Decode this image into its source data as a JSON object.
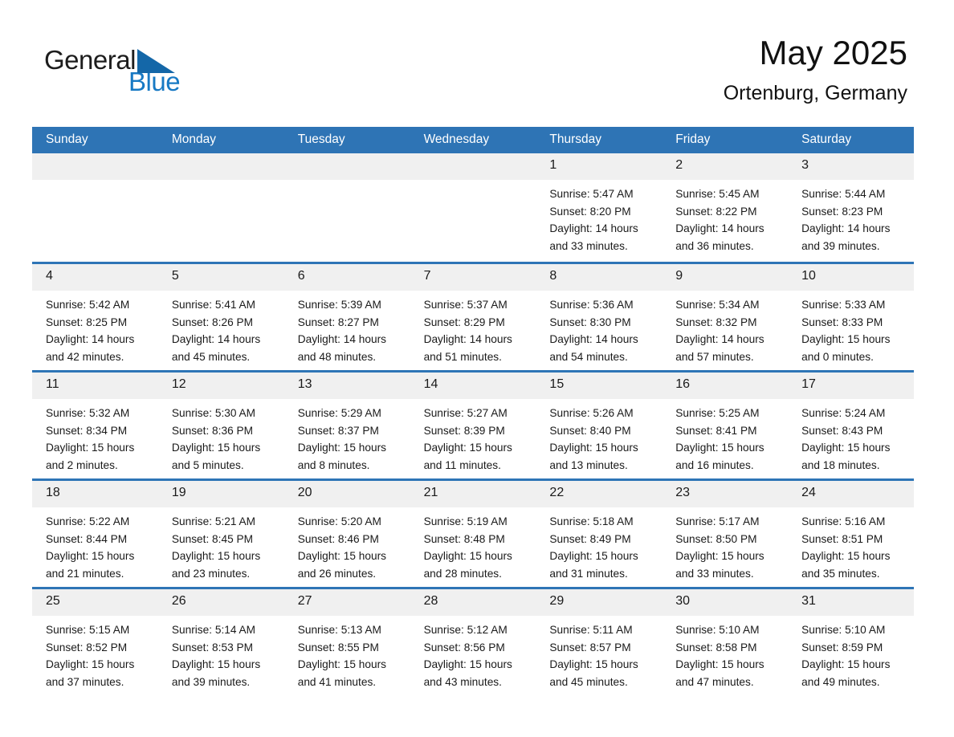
{
  "logo": {
    "general": "General",
    "blue": "Blue",
    "triangle_icon": "flag-triangle"
  },
  "header": {
    "title": "May 2025",
    "subtitle": "Ortenburg, Germany"
  },
  "weekdays": [
    "Sunday",
    "Monday",
    "Tuesday",
    "Wednesday",
    "Thursday",
    "Friday",
    "Saturday"
  ],
  "colors": {
    "header_blue": "#2E74B5",
    "divider_blue": "#2E75B6",
    "day_band_gray": "#F0F0F0",
    "logo_text_blue": "#1779C4",
    "logo_triangle_blue": "#1467A8"
  },
  "weeks": [
    [
      null,
      null,
      null,
      null,
      {
        "day": "1",
        "sunrise": "Sunrise: 5:47 AM",
        "sunset": "Sunset: 8:20 PM",
        "daylight1": "Daylight: 14 hours",
        "daylight2": "and 33 minutes."
      },
      {
        "day": "2",
        "sunrise": "Sunrise: 5:45 AM",
        "sunset": "Sunset: 8:22 PM",
        "daylight1": "Daylight: 14 hours",
        "daylight2": "and 36 minutes."
      },
      {
        "day": "3",
        "sunrise": "Sunrise: 5:44 AM",
        "sunset": "Sunset: 8:23 PM",
        "daylight1": "Daylight: 14 hours",
        "daylight2": "and 39 minutes."
      }
    ],
    [
      {
        "day": "4",
        "sunrise": "Sunrise: 5:42 AM",
        "sunset": "Sunset: 8:25 PM",
        "daylight1": "Daylight: 14 hours",
        "daylight2": "and 42 minutes."
      },
      {
        "day": "5",
        "sunrise": "Sunrise: 5:41 AM",
        "sunset": "Sunset: 8:26 PM",
        "daylight1": "Daylight: 14 hours",
        "daylight2": "and 45 minutes."
      },
      {
        "day": "6",
        "sunrise": "Sunrise: 5:39 AM",
        "sunset": "Sunset: 8:27 PM",
        "daylight1": "Daylight: 14 hours",
        "daylight2": "and 48 minutes."
      },
      {
        "day": "7",
        "sunrise": "Sunrise: 5:37 AM",
        "sunset": "Sunset: 8:29 PM",
        "daylight1": "Daylight: 14 hours",
        "daylight2": "and 51 minutes."
      },
      {
        "day": "8",
        "sunrise": "Sunrise: 5:36 AM",
        "sunset": "Sunset: 8:30 PM",
        "daylight1": "Daylight: 14 hours",
        "daylight2": "and 54 minutes."
      },
      {
        "day": "9",
        "sunrise": "Sunrise: 5:34 AM",
        "sunset": "Sunset: 8:32 PM",
        "daylight1": "Daylight: 14 hours",
        "daylight2": "and 57 minutes."
      },
      {
        "day": "10",
        "sunrise": "Sunrise: 5:33 AM",
        "sunset": "Sunset: 8:33 PM",
        "daylight1": "Daylight: 15 hours",
        "daylight2": "and 0 minutes."
      }
    ],
    [
      {
        "day": "11",
        "sunrise": "Sunrise: 5:32 AM",
        "sunset": "Sunset: 8:34 PM",
        "daylight1": "Daylight: 15 hours",
        "daylight2": "and 2 minutes."
      },
      {
        "day": "12",
        "sunrise": "Sunrise: 5:30 AM",
        "sunset": "Sunset: 8:36 PM",
        "daylight1": "Daylight: 15 hours",
        "daylight2": "and 5 minutes."
      },
      {
        "day": "13",
        "sunrise": "Sunrise: 5:29 AM",
        "sunset": "Sunset: 8:37 PM",
        "daylight1": "Daylight: 15 hours",
        "daylight2": "and 8 minutes."
      },
      {
        "day": "14",
        "sunrise": "Sunrise: 5:27 AM",
        "sunset": "Sunset: 8:39 PM",
        "daylight1": "Daylight: 15 hours",
        "daylight2": "and 11 minutes."
      },
      {
        "day": "15",
        "sunrise": "Sunrise: 5:26 AM",
        "sunset": "Sunset: 8:40 PM",
        "daylight1": "Daylight: 15 hours",
        "daylight2": "and 13 minutes."
      },
      {
        "day": "16",
        "sunrise": "Sunrise: 5:25 AM",
        "sunset": "Sunset: 8:41 PM",
        "daylight1": "Daylight: 15 hours",
        "daylight2": "and 16 minutes."
      },
      {
        "day": "17",
        "sunrise": "Sunrise: 5:24 AM",
        "sunset": "Sunset: 8:43 PM",
        "daylight1": "Daylight: 15 hours",
        "daylight2": "and 18 minutes."
      }
    ],
    [
      {
        "day": "18",
        "sunrise": "Sunrise: 5:22 AM",
        "sunset": "Sunset: 8:44 PM",
        "daylight1": "Daylight: 15 hours",
        "daylight2": "and 21 minutes."
      },
      {
        "day": "19",
        "sunrise": "Sunrise: 5:21 AM",
        "sunset": "Sunset: 8:45 PM",
        "daylight1": "Daylight: 15 hours",
        "daylight2": "and 23 minutes."
      },
      {
        "day": "20",
        "sunrise": "Sunrise: 5:20 AM",
        "sunset": "Sunset: 8:46 PM",
        "daylight1": "Daylight: 15 hours",
        "daylight2": "and 26 minutes."
      },
      {
        "day": "21",
        "sunrise": "Sunrise: 5:19 AM",
        "sunset": "Sunset: 8:48 PM",
        "daylight1": "Daylight: 15 hours",
        "daylight2": "and 28 minutes."
      },
      {
        "day": "22",
        "sunrise": "Sunrise: 5:18 AM",
        "sunset": "Sunset: 8:49 PM",
        "daylight1": "Daylight: 15 hours",
        "daylight2": "and 31 minutes."
      },
      {
        "day": "23",
        "sunrise": "Sunrise: 5:17 AM",
        "sunset": "Sunset: 8:50 PM",
        "daylight1": "Daylight: 15 hours",
        "daylight2": "and 33 minutes."
      },
      {
        "day": "24",
        "sunrise": "Sunrise: 5:16 AM",
        "sunset": "Sunset: 8:51 PM",
        "daylight1": "Daylight: 15 hours",
        "daylight2": "and 35 minutes."
      }
    ],
    [
      {
        "day": "25",
        "sunrise": "Sunrise: 5:15 AM",
        "sunset": "Sunset: 8:52 PM",
        "daylight1": "Daylight: 15 hours",
        "daylight2": "and 37 minutes."
      },
      {
        "day": "26",
        "sunrise": "Sunrise: 5:14 AM",
        "sunset": "Sunset: 8:53 PM",
        "daylight1": "Daylight: 15 hours",
        "daylight2": "and 39 minutes."
      },
      {
        "day": "27",
        "sunrise": "Sunrise: 5:13 AM",
        "sunset": "Sunset: 8:55 PM",
        "daylight1": "Daylight: 15 hours",
        "daylight2": "and 41 minutes."
      },
      {
        "day": "28",
        "sunrise": "Sunrise: 5:12 AM",
        "sunset": "Sunset: 8:56 PM",
        "daylight1": "Daylight: 15 hours",
        "daylight2": "and 43 minutes."
      },
      {
        "day": "29",
        "sunrise": "Sunrise: 5:11 AM",
        "sunset": "Sunset: 8:57 PM",
        "daylight1": "Daylight: 15 hours",
        "daylight2": "and 45 minutes."
      },
      {
        "day": "30",
        "sunrise": "Sunrise: 5:10 AM",
        "sunset": "Sunset: 8:58 PM",
        "daylight1": "Daylight: 15 hours",
        "daylight2": "and 47 minutes."
      },
      {
        "day": "31",
        "sunrise": "Sunrise: 5:10 AM",
        "sunset": "Sunset: 8:59 PM",
        "daylight1": "Daylight: 15 hours",
        "daylight2": "and 49 minutes."
      }
    ]
  ]
}
